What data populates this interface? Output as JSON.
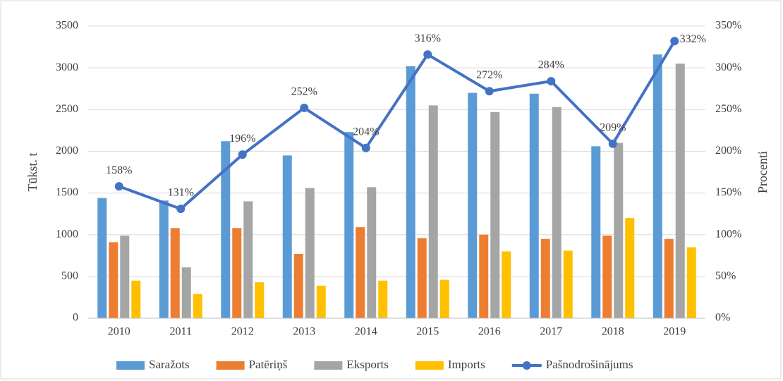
{
  "chart_data": {
    "type": "bar-line",
    "categories": [
      "2010",
      "2011",
      "2012",
      "2013",
      "2014",
      "2015",
      "2016",
      "2017",
      "2018",
      "2019"
    ],
    "series": [
      {
        "name": "Saražots",
        "color": "#5b9bd5",
        "values": [
          1440,
          1410,
          2120,
          1950,
          2230,
          3020,
          2700,
          2690,
          2060,
          3160
        ]
      },
      {
        "name": "Patēriņš",
        "color": "#ed7d31",
        "values": [
          910,
          1080,
          1080,
          770,
          1090,
          960,
          1000,
          950,
          990,
          950
        ]
      },
      {
        "name": "Eksports",
        "color": "#a5a5a5",
        "values": [
          990,
          610,
          1400,
          1560,
          1570,
          2550,
          2470,
          2530,
          2100,
          3050
        ]
      },
      {
        "name": "Imports",
        "color": "#ffc000",
        "values": [
          450,
          290,
          430,
          390,
          450,
          460,
          800,
          810,
          1200,
          850
        ]
      },
      {
        "name": "Pašnodrošinājums",
        "color": "#4472c4",
        "axis": "y2",
        "kind": "line",
        "values": [
          158,
          131,
          196,
          252,
          204,
          316,
          272,
          284,
          209,
          332
        ],
        "value_labels": [
          "158%",
          "131%",
          "196%",
          "252%",
          "204%",
          "316%",
          "272%",
          "284%",
          "209%",
          "332%"
        ]
      }
    ],
    "ylabel": "Tūkst. t",
    "y2label": "Procenti",
    "ylim": [
      0,
      3500
    ],
    "yticks": [
      0,
      500,
      1000,
      1500,
      2000,
      2500,
      3000,
      3500
    ],
    "y2lim": [
      0,
      350
    ],
    "y2ticks": [
      {
        "value": 0,
        "label": "0%"
      },
      {
        "value": 50,
        "label": "50%"
      },
      {
        "value": 100,
        "label": "100%"
      },
      {
        "value": 150,
        "label": "150%"
      },
      {
        "value": 200,
        "label": "200%"
      },
      {
        "value": 250,
        "label": "250%"
      },
      {
        "value": 300,
        "label": "300%"
      },
      {
        "value": 350,
        "label": "350%"
      }
    ],
    "legend": "bottom"
  }
}
